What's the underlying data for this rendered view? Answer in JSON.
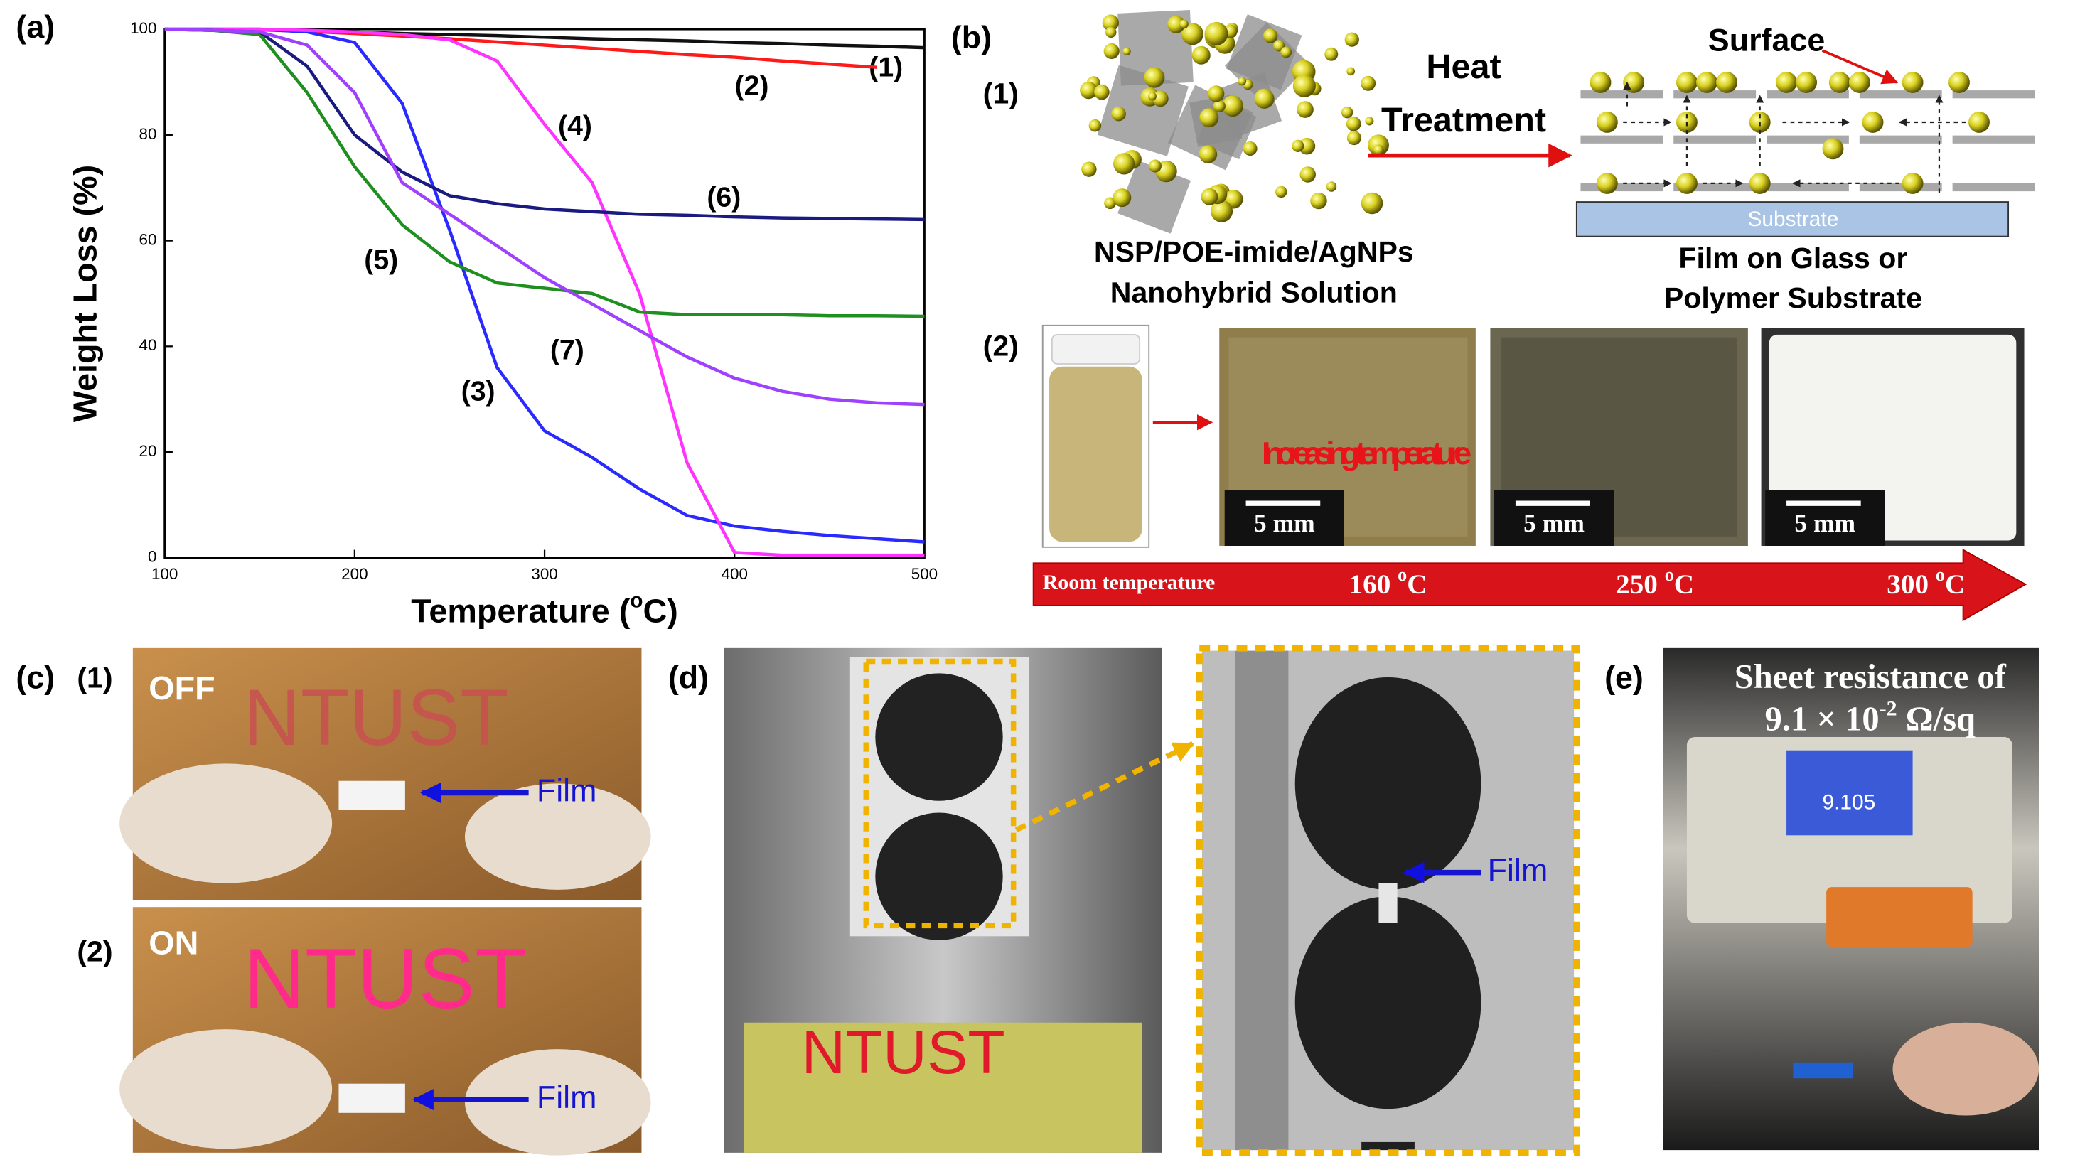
{
  "chart_data": {
    "type": "line",
    "label": "(a)",
    "ylabel": "Weight Loss (%)",
    "xlabel": {
      "text": "Temperature (",
      "sup": "o",
      "end": "C)"
    },
    "xlim": [
      100,
      500
    ],
    "ylim": [
      0,
      100
    ],
    "xticks": [
      100,
      200,
      300,
      400,
      500
    ],
    "yticks": [
      0,
      20,
      40,
      60,
      80,
      100
    ],
    "x": [
      100,
      125,
      150,
      175,
      200,
      225,
      250,
      275,
      300,
      325,
      350,
      375,
      400,
      425,
      450,
      475,
      500
    ],
    "series": [
      {
        "name": "(1)",
        "color": "#111111",
        "values": [
          100,
          100,
          100,
          99.8,
          99.5,
          99.2,
          99,
          98.8,
          98.5,
          98.2,
          98,
          97.8,
          97.5,
          97.3,
          97,
          96.8,
          96.5
        ]
      },
      {
        "name": "(2)",
        "color": "#ff1a1a",
        "values": [
          100,
          100,
          99.9,
          99.6,
          99.2,
          98.7,
          98.2,
          97.6,
          97,
          96.4,
          95.8,
          95.2,
          94.7,
          94.0,
          93.4,
          92.8,
          null
        ]
      },
      {
        "name": "(3)",
        "color": "#2a2aff",
        "values": [
          100,
          100,
          100,
          99.5,
          97.5,
          86,
          62,
          36,
          24,
          19,
          13,
          8,
          6,
          5,
          4.2,
          3.6,
          3
        ]
      },
      {
        "name": "(4)",
        "color": "#ff33ff",
        "values": [
          100,
          100,
          100,
          99.8,
          99.5,
          99,
          98,
          94,
          82,
          71,
          50,
          18,
          1,
          0.5,
          0.5,
          0.5,
          0.5
        ]
      },
      {
        "name": "(5)",
        "color": "#1f8f1f",
        "values": [
          100,
          99.8,
          99,
          88,
          74,
          63,
          56,
          52,
          51,
          50,
          46.5,
          46,
          46,
          46,
          45.8,
          45.8,
          45.7
        ]
      },
      {
        "name": "(6)",
        "color": "#1a1a80",
        "values": [
          100,
          99.8,
          99.5,
          93,
          80,
          73,
          68.5,
          67,
          66,
          65.5,
          65,
          64.8,
          64.5,
          64.3,
          64.2,
          64.1,
          64
        ]
      },
      {
        "name": "(7)",
        "color": "#a040ff",
        "values": [
          100,
          99.8,
          99.5,
          97,
          88,
          71,
          65,
          59,
          53,
          48,
          43,
          38,
          34,
          31.5,
          30,
          29.3,
          29
        ]
      }
    ]
  },
  "figure": {
    "b": {
      "label": "(b)",
      "step1": "(1)",
      "step2": "(2)",
      "solution": [
        "NSP/POE-imide/AgNPs",
        "Nanohybrid Solution"
      ],
      "heat": [
        "Heat",
        "Treatment"
      ],
      "surface": "Surface",
      "substrate": "Substrate",
      "film": [
        "Film on Glass or",
        "Polymer Substrate"
      ],
      "increasing": "Increasing temperature",
      "scale_bars": [
        "5 mm",
        "5 mm",
        "5 mm"
      ],
      "room": "Room temperature",
      "temps": [
        {
          "n": "160 ",
          "sup": "o",
          "u": "C"
        },
        {
          "n": "250 ",
          "sup": "o",
          "u": "C"
        },
        {
          "n": "300 ",
          "sup": "o",
          "u": "C"
        }
      ]
    },
    "c": {
      "label": "(c)",
      "step1": "(1)",
      "step2": "(2)",
      "off": "OFF",
      "on": "ON",
      "sign": [
        "NTUST",
        "NTUST"
      ],
      "film": [
        "Film",
        "Film"
      ]
    },
    "d": {
      "label": "(d)",
      "sign": "NTUST",
      "film": "Film"
    },
    "e": {
      "label": "(e)",
      "caption": "Sheet resistance of",
      "value": {
        "n": "9.1 × 10",
        "sup": "-2",
        "u": " Ω/sq"
      },
      "screen": "9.105"
    }
  }
}
